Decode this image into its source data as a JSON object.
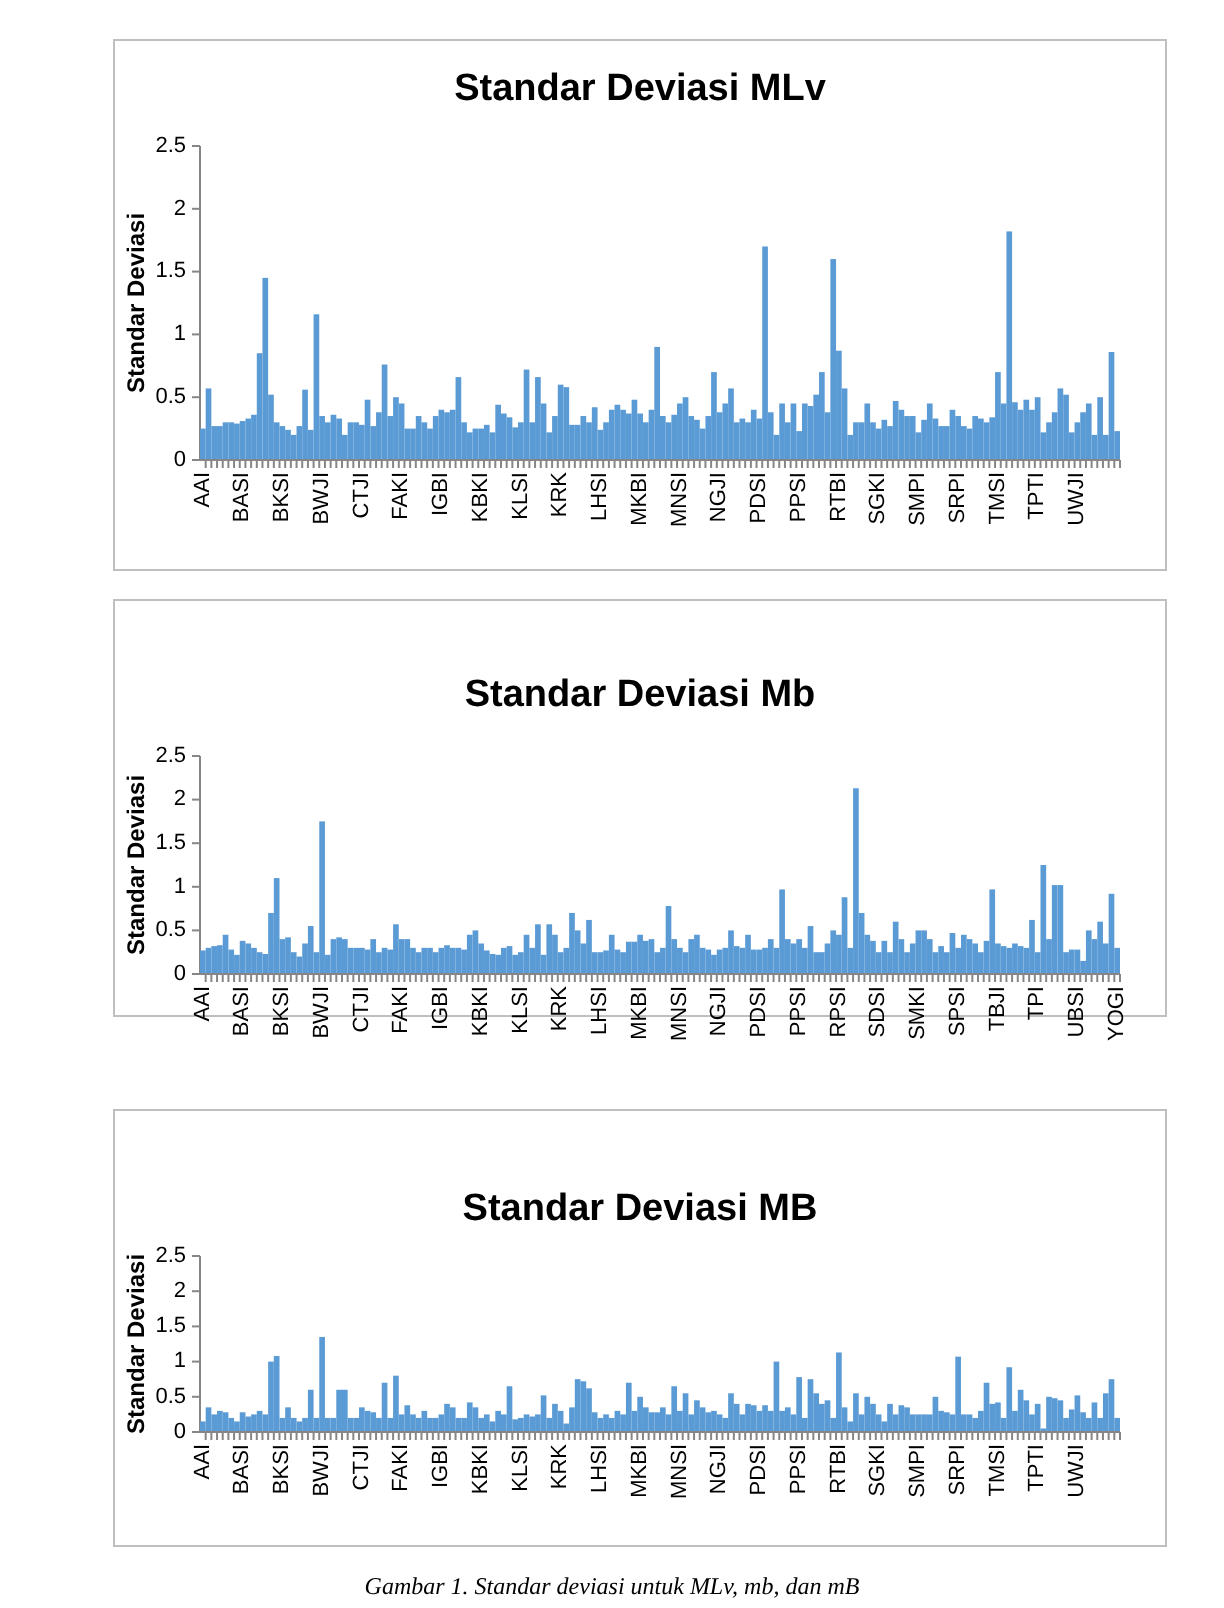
{
  "chart_data": [
    {
      "type": "bar",
      "title": "Standar Deviasi MLv",
      "ylabel": "Standar Deviasi",
      "color": "#5b9bd5",
      "ylim": [
        0,
        2.5
      ],
      "yticks": [
        0,
        0.5,
        1,
        1.5,
        2,
        2.5
      ],
      "categories": [
        "AAI",
        null,
        null,
        null,
        null,
        null,
        null,
        "BASI",
        null,
        null,
        null,
        null,
        null,
        null,
        "BKSI",
        null,
        null,
        null,
        null,
        null,
        null,
        "BWJI",
        null,
        null,
        null,
        null,
        null,
        null,
        "CTJI",
        null,
        null,
        null,
        null,
        null,
        null,
        "FAKI",
        null,
        null,
        null,
        null,
        null,
        null,
        "IGBI",
        null,
        null,
        null,
        null,
        null,
        null,
        "KBKI",
        null,
        null,
        null,
        null,
        null,
        null,
        "KLSI",
        null,
        null,
        null,
        null,
        null,
        null,
        "KRK",
        null,
        null,
        null,
        null,
        null,
        null,
        "LHSI",
        null,
        null,
        null,
        null,
        null,
        null,
        "MKBI",
        null,
        null,
        null,
        null,
        null,
        null,
        "MNSI",
        null,
        null,
        null,
        null,
        null,
        null,
        "NGJI",
        null,
        null,
        null,
        null,
        null,
        null,
        "PDSI",
        null,
        null,
        null,
        null,
        null,
        null,
        "PPSI",
        null,
        null,
        null,
        null,
        null,
        null,
        "RTBI",
        null,
        null,
        null,
        null,
        null,
        null,
        "SGKI",
        null,
        null,
        null,
        null,
        null,
        null,
        "SMPI",
        null,
        null,
        null,
        null,
        null,
        null,
        "SRPI",
        null,
        null,
        null,
        null,
        null,
        null,
        "TMSI",
        null,
        null,
        null,
        null,
        null,
        null,
        "TPTI",
        null,
        null,
        null,
        null,
        null,
        null,
        "UWJI",
        null,
        null,
        null,
        null,
        null,
        null,
        null
      ],
      "values": [
        0.25,
        0.57,
        0.27,
        0.27,
        0.3,
        0.3,
        0.29,
        0.31,
        0.33,
        0.36,
        0.85,
        1.45,
        0.52,
        0.3,
        0.27,
        0.24,
        0.2,
        0.27,
        0.56,
        0.24,
        1.16,
        0.35,
        0.3,
        0.36,
        0.33,
        0.2,
        0.3,
        0.3,
        0.28,
        0.48,
        0.27,
        0.38,
        0.76,
        0.35,
        0.5,
        0.45,
        0.25,
        0.25,
        0.35,
        0.3,
        0.25,
        0.35,
        0.4,
        0.38,
        0.4,
        0.66,
        0.3,
        0.22,
        0.25,
        0.25,
        0.28,
        0.22,
        0.44,
        0.37,
        0.34,
        0.26,
        0.3,
        0.72,
        0.3,
        0.66,
        0.45,
        0.22,
        0.35,
        0.6,
        0.58,
        0.28,
        0.28,
        0.35,
        0.3,
        0.42,
        0.24,
        0.3,
        0.4,
        0.44,
        0.4,
        0.37,
        0.48,
        0.37,
        0.3,
        0.4,
        0.9,
        0.35,
        0.3,
        0.36,
        0.45,
        0.5,
        0.35,
        0.32,
        0.25,
        0.35,
        0.7,
        0.38,
        0.45,
        0.57,
        0.3,
        0.33,
        0.3,
        0.4,
        0.33,
        1.7,
        0.38,
        0.2,
        0.45,
        0.3,
        0.45,
        0.23,
        0.45,
        0.43,
        0.52,
        0.7,
        0.38,
        1.6,
        0.87,
        0.57,
        0.2,
        0.3,
        0.3,
        0.45,
        0.3,
        0.25,
        0.32,
        0.27,
        0.47,
        0.4,
        0.35,
        0.35,
        0.22,
        0.32,
        0.45,
        0.33,
        0.27,
        0.27,
        0.4,
        0.35,
        0.27,
        0.25,
        0.35,
        0.33,
        0.3,
        0.34,
        0.7,
        0.45,
        1.82,
        0.46,
        0.4,
        0.48,
        0.4,
        0.5,
        0.22,
        0.3,
        0.38,
        0.57,
        0.52,
        0.22,
        0.3,
        0.38,
        0.45,
        0.2,
        0.5,
        0.2,
        0.86,
        0.23
      ]
    },
    {
      "type": "bar",
      "title": "Standar Deviasi Mb",
      "ylabel": "Standar Deviasi",
      "color": "#5b9bd5",
      "ylim": [
        0,
        2.5
      ],
      "yticks": [
        0,
        0.5,
        1,
        1.5,
        2,
        2.5
      ],
      "categories": [
        "AAI",
        null,
        null,
        null,
        null,
        null,
        null,
        "BASI",
        null,
        null,
        null,
        null,
        null,
        null,
        "BKSI",
        null,
        null,
        null,
        null,
        null,
        null,
        "BWJI",
        null,
        null,
        null,
        null,
        null,
        null,
        "CTJI",
        null,
        null,
        null,
        null,
        null,
        null,
        "FAKI",
        null,
        null,
        null,
        null,
        null,
        null,
        "IGBI",
        null,
        null,
        null,
        null,
        null,
        null,
        "KBKI",
        null,
        null,
        null,
        null,
        null,
        null,
        "KLSI",
        null,
        null,
        null,
        null,
        null,
        null,
        "KRK",
        null,
        null,
        null,
        null,
        null,
        null,
        "LHSI",
        null,
        null,
        null,
        null,
        null,
        null,
        "MKBI",
        null,
        null,
        null,
        null,
        null,
        null,
        "MNSI",
        null,
        null,
        null,
        null,
        null,
        null,
        "NGJI",
        null,
        null,
        null,
        null,
        null,
        null,
        "PDSI",
        null,
        null,
        null,
        null,
        null,
        null,
        "PPSI",
        null,
        null,
        null,
        null,
        null,
        null,
        "RPSI",
        null,
        null,
        null,
        null,
        null,
        null,
        "SDSI",
        null,
        null,
        null,
        null,
        null,
        null,
        "SMKI",
        null,
        null,
        null,
        null,
        null,
        null,
        "SPSI",
        null,
        null,
        null,
        null,
        null,
        null,
        "TBJI",
        null,
        null,
        null,
        null,
        null,
        null,
        "TPI",
        null,
        null,
        null,
        null,
        null,
        null,
        "UBSI",
        null,
        null,
        null,
        null,
        null,
        null,
        "YOGI"
      ],
      "values": [
        0.27,
        0.3,
        0.32,
        0.33,
        0.45,
        0.28,
        0.22,
        0.38,
        0.35,
        0.3,
        0.25,
        0.23,
        0.7,
        1.1,
        0.4,
        0.42,
        0.25,
        0.2,
        0.35,
        0.55,
        0.25,
        1.75,
        0.22,
        0.4,
        0.42,
        0.4,
        0.3,
        0.3,
        0.3,
        0.28,
        0.4,
        0.25,
        0.3,
        0.28,
        0.57,
        0.4,
        0.4,
        0.3,
        0.25,
        0.3,
        0.3,
        0.25,
        0.3,
        0.33,
        0.3,
        0.3,
        0.28,
        0.45,
        0.5,
        0.35,
        0.27,
        0.23,
        0.22,
        0.3,
        0.32,
        0.22,
        0.25,
        0.45,
        0.3,
        0.57,
        0.22,
        0.57,
        0.45,
        0.25,
        0.3,
        0.7,
        0.5,
        0.35,
        0.62,
        0.25,
        0.25,
        0.27,
        0.45,
        0.28,
        0.25,
        0.37,
        0.37,
        0.45,
        0.38,
        0.4,
        0.25,
        0.3,
        0.78,
        0.4,
        0.3,
        0.25,
        0.4,
        0.45,
        0.3,
        0.28,
        0.22,
        0.28,
        0.3,
        0.5,
        0.32,
        0.3,
        0.45,
        0.28,
        0.28,
        0.3,
        0.4,
        0.3,
        0.97,
        0.4,
        0.35,
        0.4,
        0.3,
        0.55,
        0.25,
        0.25,
        0.35,
        0.5,
        0.45,
        0.88,
        0.3,
        2.13,
        0.7,
        0.45,
        0.38,
        0.25,
        0.38,
        0.25,
        0.6,
        0.4,
        0.25,
        0.35,
        0.5,
        0.5,
        0.4,
        0.25,
        0.32,
        0.25,
        0.47,
        0.3,
        0.45,
        0.4,
        0.35,
        0.25,
        0.38,
        0.97,
        0.35,
        0.32,
        0.3,
        0.35,
        0.32,
        0.3,
        0.62,
        0.25,
        1.25,
        0.4,
        1.02,
        1.02,
        0.25,
        0.28,
        0.28,
        0.15,
        0.5,
        0.4,
        0.6,
        0.35,
        0.92,
        0.3
      ]
    },
    {
      "type": "bar",
      "title": "Standar Deviasi MB",
      "ylabel": "Standar Deviasi",
      "color": "#5b9bd5",
      "ylim": [
        0,
        2.5
      ],
      "yticks": [
        0,
        0.5,
        1,
        1.5,
        2,
        2.5
      ],
      "categories": [
        "AAI",
        null,
        null,
        null,
        null,
        null,
        null,
        "BASI",
        null,
        null,
        null,
        null,
        null,
        null,
        "BKSI",
        null,
        null,
        null,
        null,
        null,
        null,
        "BWJI",
        null,
        null,
        null,
        null,
        null,
        null,
        "CTJI",
        null,
        null,
        null,
        null,
        null,
        null,
        "FAKI",
        null,
        null,
        null,
        null,
        null,
        null,
        "IGBI",
        null,
        null,
        null,
        null,
        null,
        null,
        "KBKI",
        null,
        null,
        null,
        null,
        null,
        null,
        "KLSI",
        null,
        null,
        null,
        null,
        null,
        null,
        "KRK",
        null,
        null,
        null,
        null,
        null,
        null,
        "LHSI",
        null,
        null,
        null,
        null,
        null,
        null,
        "MKBI",
        null,
        null,
        null,
        null,
        null,
        null,
        "MNSI",
        null,
        null,
        null,
        null,
        null,
        null,
        "NGJI",
        null,
        null,
        null,
        null,
        null,
        null,
        "PDSI",
        null,
        null,
        null,
        null,
        null,
        null,
        "PPSI",
        null,
        null,
        null,
        null,
        null,
        null,
        "RTBI",
        null,
        null,
        null,
        null,
        null,
        null,
        "SGKI",
        null,
        null,
        null,
        null,
        null,
        null,
        "SMPI",
        null,
        null,
        null,
        null,
        null,
        null,
        "SRPI",
        null,
        null,
        null,
        null,
        null,
        null,
        "TMSI",
        null,
        null,
        null,
        null,
        null,
        null,
        "TPTI",
        null,
        null,
        null,
        null,
        null,
        null,
        "UWJI",
        null,
        null,
        null,
        null,
        null,
        null,
        null
      ],
      "values": [
        0.15,
        0.35,
        0.25,
        0.3,
        0.28,
        0.2,
        0.15,
        0.28,
        0.22,
        0.25,
        0.3,
        0.25,
        1.0,
        1.08,
        0.2,
        0.35,
        0.2,
        0.15,
        0.2,
        0.6,
        0.2,
        1.35,
        0.2,
        0.2,
        0.6,
        0.6,
        0.2,
        0.2,
        0.35,
        0.3,
        0.28,
        0.2,
        0.7,
        0.2,
        0.8,
        0.25,
        0.38,
        0.25,
        0.2,
        0.3,
        0.2,
        0.2,
        0.25,
        0.4,
        0.35,
        0.2,
        0.2,
        0.42,
        0.35,
        0.2,
        0.25,
        0.15,
        0.3,
        0.25,
        0.65,
        0.18,
        0.2,
        0.25,
        0.22,
        0.25,
        0.52,
        0.2,
        0.4,
        0.3,
        0.12,
        0.35,
        0.75,
        0.72,
        0.62,
        0.28,
        0.2,
        0.25,
        0.2,
        0.3,
        0.25,
        0.7,
        0.3,
        0.5,
        0.35,
        0.28,
        0.28,
        0.35,
        0.25,
        0.65,
        0.3,
        0.55,
        0.25,
        0.45,
        0.35,
        0.28,
        0.3,
        0.25,
        0.2,
        0.55,
        0.4,
        0.25,
        0.4,
        0.38,
        0.3,
        0.38,
        0.3,
        1.0,
        0.3,
        0.35,
        0.25,
        0.78,
        0.2,
        0.75,
        0.55,
        0.4,
        0.45,
        0.2,
        1.13,
        0.35,
        0.15,
        0.55,
        0.25,
        0.5,
        0.4,
        0.25,
        0.15,
        0.4,
        0.25,
        0.38,
        0.35,
        0.25,
        0.25,
        0.25,
        0.25,
        0.5,
        0.3,
        0.28,
        0.25,
        1.07,
        0.25,
        0.25,
        0.2,
        0.3,
        0.7,
        0.4,
        0.42,
        0.2,
        0.92,
        0.3,
        0.6,
        0.45,
        0.25,
        0.4,
        0.05,
        0.5,
        0.48,
        0.45,
        0.2,
        0.32,
        0.52,
        0.28,
        0.2,
        0.42,
        0.2,
        0.55,
        0.75,
        0.2
      ],
      "annotations": [
        "Gambar 1. Standar deviasi untuk MLv, mb, dan mB"
      ]
    }
  ]
}
